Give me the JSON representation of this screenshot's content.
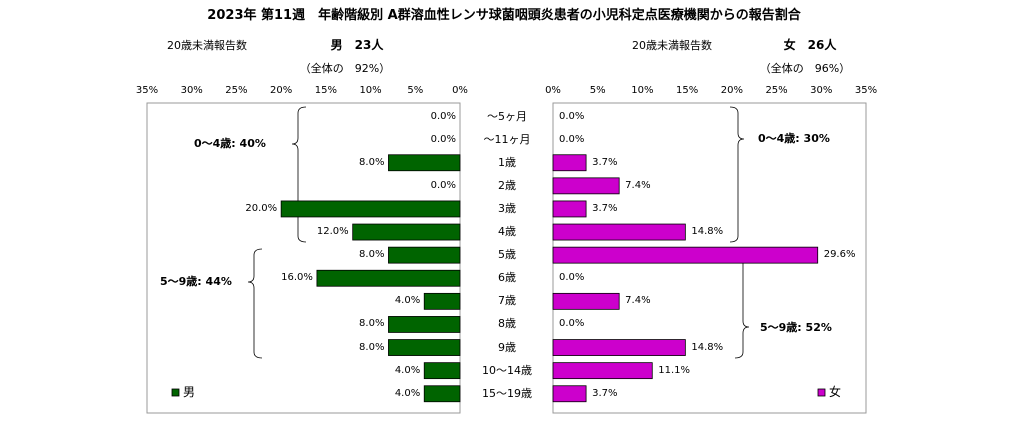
{
  "title": "2023年 第11週　年齢階級別 A群溶血性レンサ球菌咽頭炎患者の小児科定点医療機関からの報告割合",
  "male_panel": {
    "under20_label": "20歳未満報告数",
    "sex_count": "男　23人",
    "whole_share": "（全体の　92%）",
    "legend_label": "男",
    "color": "#006400",
    "bracket_0_4": "0～4歳: 40%",
    "bracket_5_9": "5～9歳: 44%"
  },
  "female_panel": {
    "under20_label": "20歳未満報告数",
    "sex_count": "女　26人",
    "whole_share": "（全体の　96%）",
    "legend_label": "女",
    "color": "#CC00CC",
    "bracket_0_4": "0～4歳: 30%",
    "bracket_5_9": "5～9歳: 52%"
  },
  "chart_data": {
    "type": "bar",
    "orientation": "horizontal",
    "categories": [
      "～5ヶ月",
      "～11ヶ月",
      "1歳",
      "2歳",
      "3歳",
      "4歳",
      "5歳",
      "6歳",
      "7歳",
      "8歳",
      "9歳",
      "10～14歳",
      "15～19歳"
    ],
    "series": [
      {
        "name": "男",
        "values": [
          0.0,
          0.0,
          8.0,
          0.0,
          20.0,
          12.0,
          8.0,
          16.0,
          4.0,
          8.0,
          8.0,
          4.0,
          4.0
        ],
        "labels": [
          "0.0%",
          "0.0%",
          "8.0%",
          "0.0%",
          "20.0%",
          "12.0%",
          "8.0%",
          "16.0%",
          "4.0%",
          "8.0%",
          "8.0%",
          "4.0%",
          "4.0%"
        ]
      },
      {
        "name": "女",
        "values": [
          0.0,
          0.0,
          3.7,
          7.4,
          3.7,
          14.8,
          29.6,
          0.0,
          7.4,
          0.0,
          14.8,
          11.1,
          3.7
        ],
        "labels": [
          "0.0%",
          "0.0%",
          "3.7%",
          "7.4%",
          "3.7%",
          "14.8%",
          "29.6%",
          "0.0%",
          "7.4%",
          "0.0%",
          "14.8%",
          "11.1%",
          "3.7%"
        ]
      }
    ],
    "xlim": [
      0,
      35
    ],
    "male_ticks": [
      "35%",
      "30%",
      "25%",
      "20%",
      "15%",
      "10%",
      "5%",
      "0%"
    ],
    "female_ticks": [
      "0%",
      "5%",
      "10%",
      "15%",
      "20%",
      "25%",
      "30%",
      "35%"
    ],
    "legend_position": "bottom-left (男), bottom-right (女)",
    "grid": false
  }
}
